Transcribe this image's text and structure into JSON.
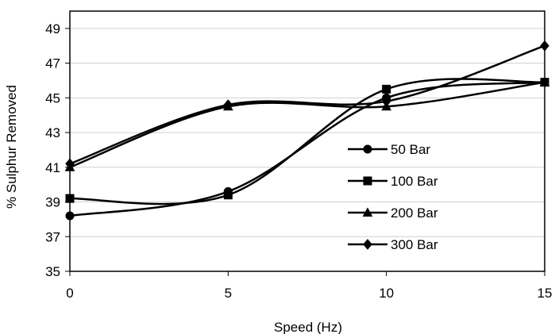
{
  "chart_data": {
    "type": "line",
    "title": "",
    "xlabel": "Speed (Hz)",
    "ylabel": "% Sulphur Removed",
    "x": [
      0,
      5,
      10,
      15
    ],
    "xlim": [
      0,
      15
    ],
    "ylim": [
      35,
      50
    ],
    "xticks": [
      0,
      5,
      10,
      15
    ],
    "yticks": [
      35,
      37,
      39,
      41,
      43,
      45,
      47,
      49
    ],
    "grid": "horizontal",
    "legend_position": "center-right",
    "line_style": "smoothed",
    "series": [
      {
        "name": "50 Bar",
        "marker": "circle",
        "values": [
          38.2,
          39.6,
          45.0,
          45.9
        ]
      },
      {
        "name": "100 Bar",
        "marker": "square",
        "values": [
          39.2,
          39.4,
          45.5,
          45.9
        ]
      },
      {
        "name": "200 Bar",
        "marker": "triangle",
        "values": [
          41.0,
          44.5,
          44.5,
          45.9
        ]
      },
      {
        "name": "300 Bar",
        "marker": "diamond",
        "values": [
          41.2,
          44.6,
          44.8,
          48.0
        ]
      }
    ],
    "colors": {
      "lines": "#000000",
      "grid": "#d0d0d0",
      "axes": "#000000"
    }
  }
}
